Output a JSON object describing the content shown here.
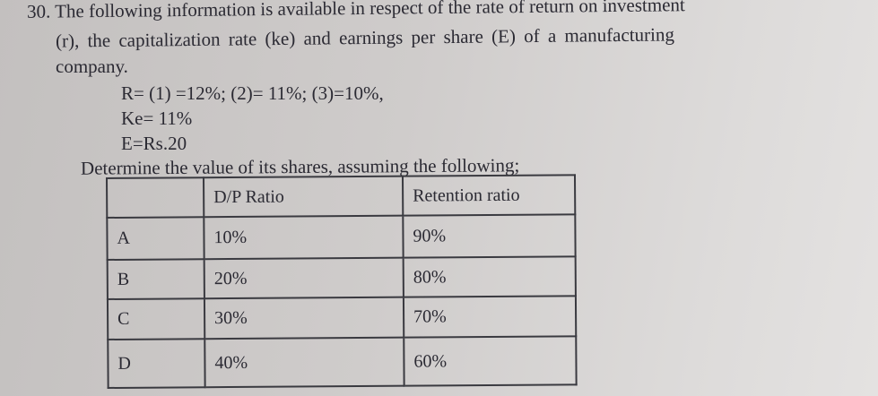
{
  "question": {
    "number": "30.",
    "line1": "The following information is available in respect of the rate of return on investment",
    "line2": "(r), the capitalization rate (ke) and earnings per share (E) of a manufacturing",
    "line3": "company.",
    "r_line": "R= (1) =12%; (2)= 11%; (3)=10%,",
    "ke_line": "Ke= 11%",
    "e_line": "E=Rs.20",
    "instruction": "Determine the value of its shares, assuming the following;"
  },
  "table": {
    "headers": [
      "",
      "D/P Ratio",
      "Retention ratio"
    ],
    "rows": [
      [
        "A",
        "10%",
        "90%"
      ],
      [
        "B",
        "20%",
        "80%"
      ],
      [
        "C",
        "30%",
        "70%"
      ],
      [
        "D",
        "40%",
        "60%"
      ]
    ]
  }
}
